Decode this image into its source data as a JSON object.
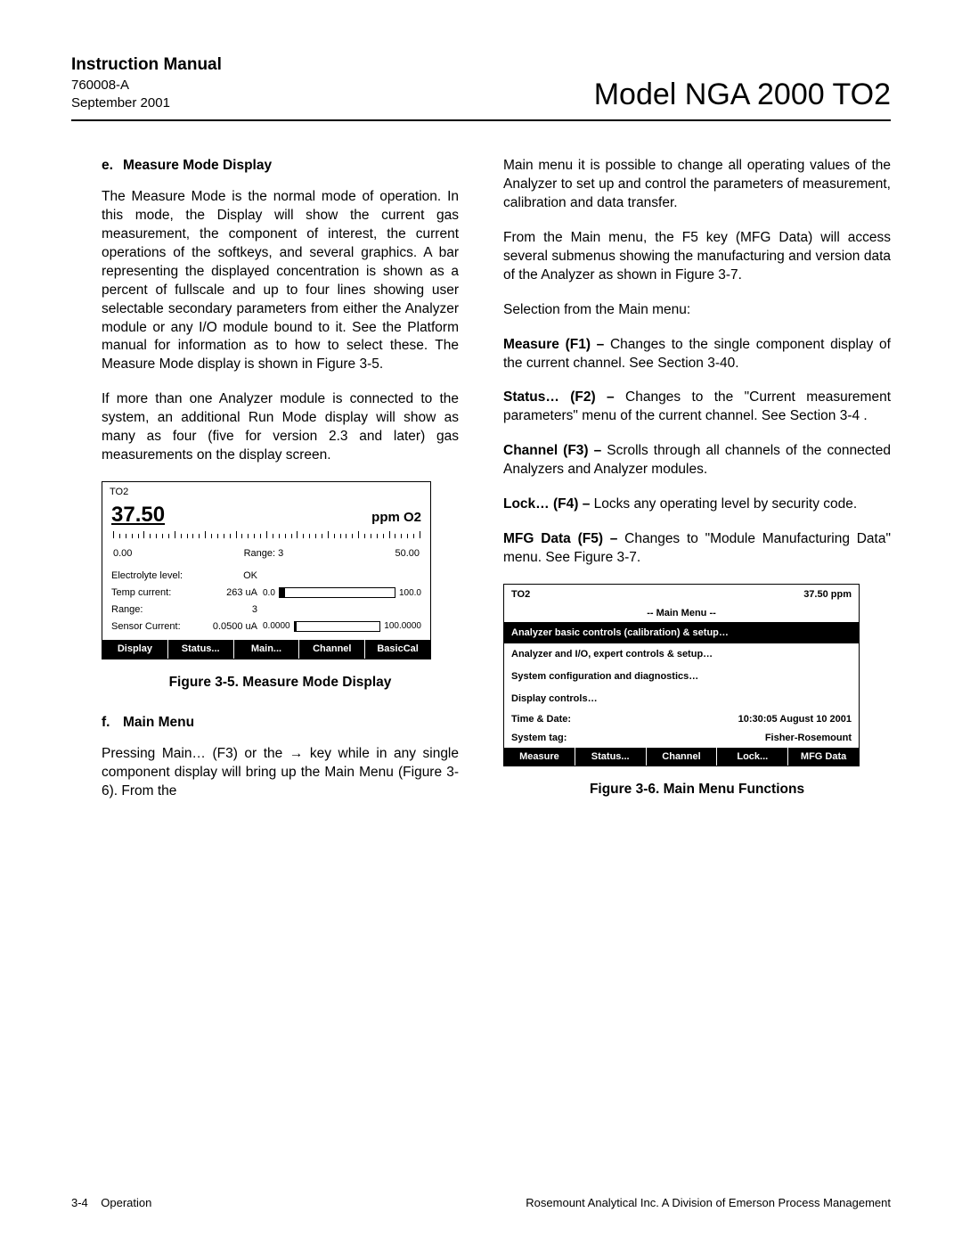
{
  "header": {
    "manual_title": "Instruction Manual",
    "doc_no": "760008-A",
    "date": "September 2001",
    "model": "Model NGA 2000 TO2"
  },
  "left": {
    "sec_e_lit": "e.",
    "sec_e_title": "Measure Mode Display",
    "p1": "The Measure Mode is the normal mode of operation. In this mode, the Display will show the current gas measurement, the component of interest, the current operations of the softkeys, and several graphics. A bar representing the displayed concentration is shown as a percent of fullscale and up to four lines showing user selectable secondary parameters from either the Analyzer module or any I/O module bound to it. See the Platform manual for information as to how to select these. The Measure Mode display is shown in Figure 3-5.",
    "p2": "If more than one Analyzer module is connected to the system, an additional Run Mode display will show as many as four (five for version 2.3 and later) gas measurements on the display screen.",
    "fig35_caption": "Figure 3-5. Measure Mode Display",
    "sec_f_lit": "f.",
    "sec_f_title": "Main Menu",
    "p3": "Pressing Main… (F3) or the → key while in any single component display will bring up the Main Menu (Figure 3-6). From the"
  },
  "fig35": {
    "tag": "TO2",
    "value": "37.50",
    "unit": "ppm O2",
    "scale_lo": "0.00",
    "scale_mid": "Range: 3",
    "scale_hi": "50.00",
    "rows": [
      {
        "label": "Electrolyte level:",
        "val": "OK",
        "bar": false
      },
      {
        "label": "Temp current:",
        "val": "263 uA",
        "bar": true,
        "lo": "0.0",
        "hi": "100.0",
        "fill_pct": 5
      },
      {
        "label": "Range:",
        "val": "3",
        "bar": false
      },
      {
        "label": "Sensor Current:",
        "val": "0.0500 uA",
        "bar": true,
        "lo": "0.0000",
        "hi": "100.0000",
        "fill_pct": 2
      }
    ],
    "buttons": [
      "Display",
      "Status...",
      "Main...",
      "Channel",
      "BasicCal"
    ]
  },
  "right": {
    "p1": "Main menu it is possible to change all operating values of the Analyzer to set up and control the parameters of measurement, calibration and data transfer.",
    "p2": "From the Main menu, the F5 key (MFG Data) will access several submenus showing the manufacturing and version data of the Analyzer as shown in Figure 3-7.",
    "p3": "Selection from the Main menu:",
    "items": [
      {
        "k": "Measure (F1) – ",
        "v": "Changes to the single component display of the current channel. See Section 3-40."
      },
      {
        "k": "Status… (F2) – ",
        "v": "Changes to the \"Current measurement parameters\" menu of the current channel. See Section 3-4 ."
      },
      {
        "k": "Channel (F3) – ",
        "v": "Scrolls through all channels of the connected Analyzers and Analyzer modules."
      },
      {
        "k": "Lock… (F4) – ",
        "v": "Locks any operating level by security code."
      },
      {
        "k": "MFG Data (F5) – ",
        "v": "Changes to \"Module Manufacturing Data\" menu. See Figure 3-7."
      }
    ],
    "fig36_caption": "Figure 3-6. Main Menu Functions"
  },
  "fig36": {
    "tag": "TO2",
    "reading": "37.50 ppm",
    "title": "-- Main Menu --",
    "rows": [
      {
        "text": "Analyzer basic controls (calibration) & setup…",
        "selected": true
      },
      {
        "text": "Analyzer and I/O, expert controls & setup…",
        "selected": false
      },
      {
        "text": "System configuration and diagnostics…",
        "selected": false
      },
      {
        "text": "Display controls…",
        "selected": false
      }
    ],
    "kv": [
      {
        "k": "Time & Date:",
        "v": "10:30:05 August 10 2001"
      },
      {
        "k": "System tag:",
        "v": "Fisher-Rosemount"
      }
    ],
    "buttons": [
      "Measure",
      "Status...",
      "Channel",
      "Lock...",
      "MFG Data"
    ]
  },
  "footer": {
    "left_page": "3-4",
    "left_section": "Operation",
    "right": "Rosemount Analytical Inc.    A Division of Emerson Process Management"
  }
}
